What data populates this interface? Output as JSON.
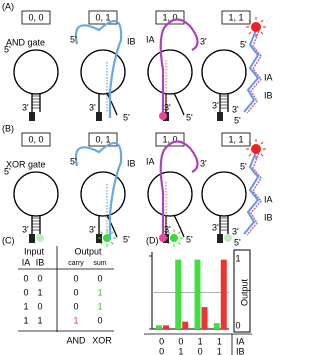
{
  "panels": [
    {
      "label": "(A)",
      "gate": "AND gate",
      "states": [
        "0, 0",
        "0, 1",
        "1, 0",
        "1, 1"
      ],
      "strand_labels": [
        [
          "5'",
          "3'"
        ],
        [
          "5'",
          "IB",
          "3'",
          "5'"
        ],
        [
          "IA",
          "3'",
          "3'",
          "5'"
        ],
        [
          "5'",
          "3'",
          "IA",
          "IB",
          "3'",
          "5'"
        ]
      ]
    },
    {
      "label": "(B)",
      "gate": "XOR gate",
      "states": [
        "0, 0",
        "0, 1",
        "1, 0",
        "1, 1"
      ],
      "strand_labels": [
        [
          "5'",
          "3'"
        ],
        [
          "5'",
          "IB",
          "3'",
          "5'"
        ],
        [
          "IA",
          "3'",
          "3'",
          "5'"
        ],
        [
          "5'",
          "3'",
          "IA",
          "IB",
          "3'",
          "5'"
        ]
      ]
    }
  ],
  "table": {
    "label": "(C)",
    "header": [
      "Input",
      "Output"
    ],
    "columns": [
      "IA",
      "IB",
      "carry",
      "sum"
    ],
    "rows": [
      [
        0,
        0,
        0,
        0
      ],
      [
        0,
        1,
        0,
        1
      ],
      [
        1,
        0,
        0,
        1
      ],
      [
        1,
        1,
        1,
        0
      ]
    ],
    "footer": [
      "AND",
      "XOR"
    ],
    "highlight_colors": [
      "#000000",
      "#000000",
      "#e0307a",
      "#33bb33"
    ]
  },
  "chart_data": {
    "type": "bar",
    "label": "(D)",
    "y_label": "Output",
    "category_rows": [
      {
        "name": "IA",
        "labels": [
          "0",
          "0",
          "1",
          "1"
        ]
      },
      {
        "name": "IB",
        "labels": [
          "0",
          "1",
          "0",
          "1"
        ]
      }
    ],
    "series": [
      {
        "color": "#44dd44",
        "values": [
          0.05,
          0.95,
          0.95,
          0.08
        ]
      },
      {
        "color": "#ee3333",
        "values": [
          0.05,
          0.1,
          0.3,
          0.95
        ]
      }
    ],
    "ylim": [
      0,
      1
    ],
    "yticks": [
      0,
      1
    ],
    "threshold": 0.5
  }
}
